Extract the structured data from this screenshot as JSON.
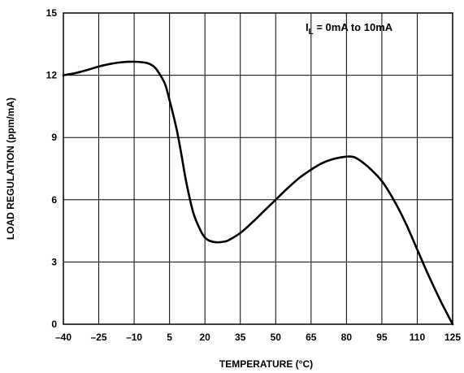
{
  "chart_data": {
    "type": "line",
    "title": "",
    "xlabel": "TEMPERATURE (°C)",
    "ylabel": "LOAD REGULATION (ppm/mA)",
    "xlim": [
      -40,
      125
    ],
    "ylim": [
      0,
      15
    ],
    "x_ticks": [
      "–40",
      "–25",
      "–10",
      "5",
      "20",
      "35",
      "50",
      "65",
      "80",
      "95",
      "110",
      "125"
    ],
    "y_ticks": [
      "0",
      "3",
      "6",
      "9",
      "12",
      "15"
    ],
    "grid": true,
    "annotation": {
      "main": "I",
      "sub": "L",
      "rest": " = 0mA to 10mA",
      "placement": "top-right"
    },
    "series": [
      {
        "x": [
          -40,
          -35,
          -30,
          -25,
          -20,
          -15,
          -10,
          -5,
          -2,
          0,
          3,
          5,
          8,
          10,
          12,
          15,
          18,
          20,
          22,
          25,
          28,
          30,
          35,
          40,
          45,
          50,
          55,
          60,
          65,
          70,
          75,
          80,
          83,
          85,
          88,
          90,
          95,
          100,
          105,
          110,
          115,
          120,
          125
        ],
        "y": [
          12.0,
          12.1,
          12.25,
          12.42,
          12.55,
          12.63,
          12.65,
          12.6,
          12.45,
          12.2,
          11.6,
          10.8,
          9.4,
          8.2,
          6.9,
          5.4,
          4.55,
          4.18,
          4.02,
          3.95,
          3.98,
          4.05,
          4.4,
          4.9,
          5.45,
          6.0,
          6.55,
          7.05,
          7.45,
          7.78,
          7.98,
          8.08,
          8.06,
          7.95,
          7.7,
          7.5,
          6.9,
          6.0,
          4.9,
          3.6,
          2.3,
          1.1,
          0.0
        ]
      }
    ],
    "colors": {
      "line": "#000000",
      "grid": "#000000",
      "background": "#ffffff"
    }
  }
}
